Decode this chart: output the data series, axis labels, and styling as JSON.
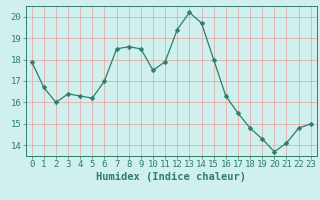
{
  "x": [
    0,
    1,
    2,
    3,
    4,
    5,
    6,
    7,
    8,
    9,
    10,
    11,
    12,
    13,
    14,
    15,
    16,
    17,
    18,
    19,
    20,
    21,
    22,
    23
  ],
  "y": [
    17.9,
    16.7,
    16.0,
    16.4,
    16.3,
    16.2,
    17.0,
    18.5,
    18.6,
    18.5,
    17.5,
    17.9,
    19.4,
    20.2,
    19.7,
    18.0,
    16.3,
    15.5,
    14.8,
    14.3,
    13.7,
    14.1,
    14.8,
    15.0
  ],
  "line_color": "#2e7d6e",
  "marker": "D",
  "marker_size": 2.5,
  "bg_color": "#cff0ec",
  "grid_color": "#e8a0a0",
  "axis_color": "#2e7d6e",
  "text_color": "#2e7d6e",
  "xlabel": "Humidex (Indice chaleur)",
  "xlim": [
    -0.5,
    23.5
  ],
  "ylim": [
    13.5,
    20.5
  ],
  "yticks": [
    14,
    15,
    16,
    17,
    18,
    19,
    20
  ],
  "xticks": [
    0,
    1,
    2,
    3,
    4,
    5,
    6,
    7,
    8,
    9,
    10,
    11,
    12,
    13,
    14,
    15,
    16,
    17,
    18,
    19,
    20,
    21,
    22,
    23
  ],
  "label_fontsize": 7.5,
  "tick_fontsize": 6.5
}
